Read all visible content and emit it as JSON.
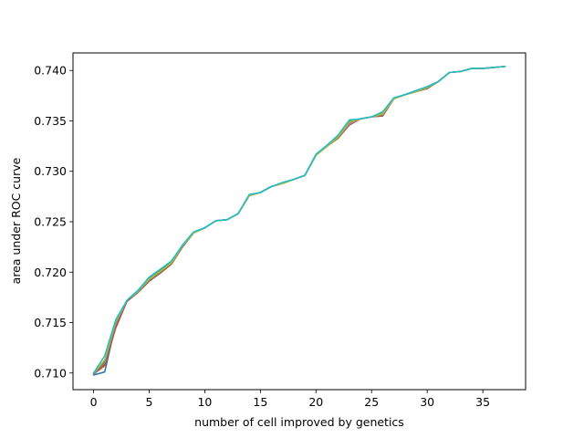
{
  "chart_data": {
    "type": "line",
    "title": "",
    "xlabel": "number of cell improved by genetics",
    "ylabel": "area under ROC curve",
    "xlim": [
      -1.85,
      38.85
    ],
    "ylim": [
      0.70835,
      0.74174
    ],
    "xticks": [
      0,
      5,
      10,
      15,
      20,
      25,
      30,
      35
    ],
    "yticks": [
      0.71,
      0.715,
      0.72,
      0.725,
      0.73,
      0.735,
      0.74
    ],
    "ytick_labels": [
      "0.710",
      "0.715",
      "0.720",
      "0.725",
      "0.730",
      "0.735",
      "0.740"
    ],
    "grid": false,
    "legend": "none",
    "x": [
      0,
      1,
      2,
      3,
      4,
      5,
      6,
      7,
      8,
      9,
      10,
      11,
      12,
      13,
      14,
      15,
      16,
      17,
      18,
      19,
      20,
      21,
      22,
      23,
      24,
      25,
      26,
      27,
      28,
      29,
      30,
      31,
      32,
      33,
      34,
      35,
      36,
      37
    ],
    "series": [
      {
        "color": "#1f77b4",
        "values": [
          0.7098,
          0.7101,
          0.7149,
          0.7172,
          0.7182,
          0.7194,
          0.7202,
          0.7211,
          0.7226,
          0.7239,
          0.7244,
          0.7251,
          0.7252,
          0.7258,
          0.7276,
          0.7279,
          0.7285,
          0.7288,
          0.7292,
          0.7296,
          0.7316,
          0.7325,
          0.7335,
          0.735,
          0.7352,
          0.7354,
          0.7358,
          0.7372,
          0.7376,
          0.738,
          0.7384,
          0.7389,
          0.7398,
          0.7399,
          0.7402,
          0.7402,
          0.7403,
          0.7404
        ]
      },
      {
        "color": "#ff7f0e",
        "values": [
          0.7099,
          0.7107,
          0.7146,
          0.7172,
          0.7181,
          0.7193,
          0.7201,
          0.7209,
          0.7226,
          0.7239,
          0.7244,
          0.7251,
          0.7252,
          0.7258,
          0.7276,
          0.7279,
          0.7285,
          0.7288,
          0.7292,
          0.7296,
          0.7316,
          0.7325,
          0.7334,
          0.7348,
          0.7352,
          0.7354,
          0.7357,
          0.7372,
          0.7376,
          0.7379,
          0.7383,
          0.7389,
          0.7398,
          0.7399,
          0.7402,
          0.7402,
          0.7403,
          0.7404
        ]
      },
      {
        "color": "#2ca02c",
        "values": [
          0.71,
          0.7112,
          0.7151,
          0.7172,
          0.7181,
          0.7193,
          0.7201,
          0.7209,
          0.7226,
          0.7239,
          0.7244,
          0.7251,
          0.7252,
          0.7258,
          0.7276,
          0.7279,
          0.7285,
          0.7288,
          0.7292,
          0.7296,
          0.7316,
          0.7325,
          0.7334,
          0.7349,
          0.7352,
          0.7354,
          0.7356,
          0.7372,
          0.7376,
          0.7379,
          0.7383,
          0.7389,
          0.7398,
          0.7399,
          0.7402,
          0.7402,
          0.7403,
          0.7404
        ]
      },
      {
        "color": "#d62728",
        "values": [
          0.7099,
          0.7108,
          0.7145,
          0.7171,
          0.718,
          0.7191,
          0.72,
          0.7208,
          0.7225,
          0.7239,
          0.7244,
          0.7251,
          0.7252,
          0.7258,
          0.7276,
          0.7279,
          0.7285,
          0.7288,
          0.7292,
          0.7296,
          0.7316,
          0.7325,
          0.7333,
          0.7346,
          0.7352,
          0.7354,
          0.7355,
          0.7372,
          0.7376,
          0.7379,
          0.7383,
          0.7389,
          0.7398,
          0.7399,
          0.7402,
          0.7402,
          0.7403,
          0.7404
        ]
      },
      {
        "color": "#9467bd",
        "values": [
          0.71,
          0.711,
          0.7148,
          0.7172,
          0.7181,
          0.7192,
          0.72,
          0.7209,
          0.7226,
          0.7239,
          0.7244,
          0.7251,
          0.7252,
          0.7258,
          0.7276,
          0.7279,
          0.7285,
          0.7288,
          0.7292,
          0.7296,
          0.7316,
          0.7325,
          0.7334,
          0.7347,
          0.7352,
          0.7354,
          0.7356,
          0.7372,
          0.7376,
          0.7379,
          0.7383,
          0.7389,
          0.7398,
          0.7399,
          0.7402,
          0.7402,
          0.7403,
          0.7404
        ]
      },
      {
        "color": "#8c564b",
        "values": [
          0.7099,
          0.7109,
          0.7147,
          0.7172,
          0.718,
          0.7191,
          0.7199,
          0.7208,
          0.7225,
          0.7239,
          0.7244,
          0.7251,
          0.7252,
          0.7258,
          0.7276,
          0.7279,
          0.7285,
          0.7288,
          0.7292,
          0.7296,
          0.7316,
          0.7325,
          0.7333,
          0.7346,
          0.7352,
          0.7354,
          0.7355,
          0.7372,
          0.7376,
          0.7379,
          0.7382,
          0.7389,
          0.7398,
          0.7399,
          0.7402,
          0.7402,
          0.7403,
          0.7404
        ]
      },
      {
        "color": "#e377c2",
        "values": [
          0.7099,
          0.711,
          0.7148,
          0.7172,
          0.7181,
          0.7192,
          0.72,
          0.7209,
          0.7226,
          0.7239,
          0.7244,
          0.7251,
          0.7252,
          0.7258,
          0.7276,
          0.7279,
          0.7285,
          0.7288,
          0.7292,
          0.7296,
          0.7316,
          0.7325,
          0.7334,
          0.7347,
          0.7352,
          0.7354,
          0.7356,
          0.7372,
          0.7376,
          0.7379,
          0.7383,
          0.7389,
          0.7398,
          0.7399,
          0.7402,
          0.7402,
          0.7403,
          0.7404
        ]
      },
      {
        "color": "#7f7f7f",
        "values": [
          0.7099,
          0.711,
          0.7148,
          0.7172,
          0.7181,
          0.7192,
          0.72,
          0.7209,
          0.7226,
          0.7239,
          0.7244,
          0.7251,
          0.7252,
          0.7258,
          0.7276,
          0.7279,
          0.7285,
          0.7288,
          0.7292,
          0.7296,
          0.7316,
          0.7325,
          0.7334,
          0.7348,
          0.7352,
          0.7354,
          0.7356,
          0.7372,
          0.7376,
          0.7379,
          0.7383,
          0.7389,
          0.7398,
          0.7399,
          0.7402,
          0.7402,
          0.7403,
          0.7404
        ]
      },
      {
        "color": "#bcbd22",
        "values": [
          0.71,
          0.7113,
          0.7151,
          0.7172,
          0.7181,
          0.7193,
          0.7201,
          0.7209,
          0.7226,
          0.7239,
          0.7244,
          0.7251,
          0.7252,
          0.7258,
          0.7276,
          0.7279,
          0.7285,
          0.7288,
          0.7292,
          0.7296,
          0.7316,
          0.7325,
          0.7334,
          0.7349,
          0.7352,
          0.7354,
          0.7357,
          0.7372,
          0.7376,
          0.7379,
          0.7383,
          0.7389,
          0.7398,
          0.7399,
          0.7402,
          0.7402,
          0.7403,
          0.7404
        ]
      },
      {
        "color": "#17becf",
        "values": [
          0.71,
          0.7117,
          0.7153,
          0.7172,
          0.7182,
          0.7195,
          0.7203,
          0.7211,
          0.7227,
          0.724,
          0.7244,
          0.7251,
          0.7252,
          0.7258,
          0.7277,
          0.7279,
          0.7285,
          0.7289,
          0.7292,
          0.7296,
          0.7317,
          0.7326,
          0.7336,
          0.7351,
          0.7352,
          0.7354,
          0.7359,
          0.7373,
          0.7376,
          0.738,
          0.7384,
          0.7389,
          0.7398,
          0.7399,
          0.7402,
          0.7402,
          0.7403,
          0.7404
        ]
      }
    ]
  }
}
